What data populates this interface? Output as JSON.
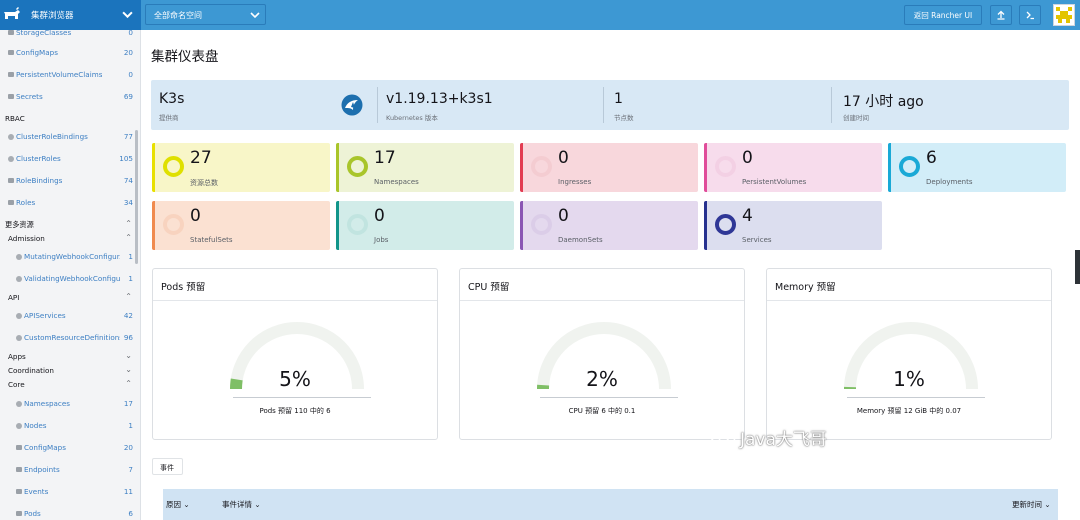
{
  "header": {
    "cluster_name": "集群浏览器",
    "namespace_select": "全部命名空间",
    "back_button": "返回 Rancher UI"
  },
  "sidebar": {
    "items": [
      {
        "type": "item",
        "icon": "folder-icon",
        "label": "StorageClasses",
        "count": "0"
      },
      {
        "type": "item",
        "icon": "folder-icon",
        "label": "ConfigMaps",
        "count": "20"
      },
      {
        "type": "item",
        "icon": "folder-icon",
        "label": "PersistentVolumeClaims",
        "count": "0"
      },
      {
        "type": "item",
        "icon": "folder-icon",
        "label": "Secrets",
        "count": "69"
      },
      {
        "type": "head",
        "label": "RBAC",
        "caret": ""
      },
      {
        "type": "item",
        "icon": "dot-icon",
        "label": "ClusterRoleBindings",
        "count": "77"
      },
      {
        "type": "item",
        "icon": "dot-icon",
        "label": "ClusterRoles",
        "count": "105"
      },
      {
        "type": "item",
        "icon": "folder-icon",
        "label": "RoleBindings",
        "count": "74"
      },
      {
        "type": "item",
        "icon": "folder-icon",
        "label": "Roles",
        "count": "34"
      },
      {
        "type": "head",
        "label": "更多资源",
        "caret": "⌃"
      },
      {
        "type": "head",
        "label": "Admission",
        "caret": "⌃"
      },
      {
        "type": "item",
        "icon": "dot-icon",
        "label": "MutatingWebhookConfigur...",
        "count": "1"
      },
      {
        "type": "item",
        "icon": "dot-icon",
        "label": "ValidatingWebhookConfigu...",
        "count": "1"
      },
      {
        "type": "head",
        "label": "API",
        "caret": "⌃"
      },
      {
        "type": "item",
        "icon": "dot-icon",
        "label": "APIServices",
        "count": "42"
      },
      {
        "type": "item",
        "icon": "dot-icon",
        "label": "CustomResourceDefinitions",
        "count": "96"
      },
      {
        "type": "head",
        "label": "Apps",
        "caret": "⌄"
      },
      {
        "type": "head",
        "label": "Coordination",
        "caret": "⌄"
      },
      {
        "type": "head",
        "label": "Core",
        "caret": "⌃"
      },
      {
        "type": "item",
        "icon": "dot-icon",
        "label": "Namespaces",
        "count": "17"
      },
      {
        "type": "item",
        "icon": "dot-icon",
        "label": "Nodes",
        "count": "1"
      },
      {
        "type": "item",
        "icon": "folder-icon",
        "label": "ConfigMaps",
        "count": "20"
      },
      {
        "type": "item",
        "icon": "folder-icon",
        "label": "Endpoints",
        "count": "7"
      },
      {
        "type": "item",
        "icon": "folder-icon",
        "label": "Events",
        "count": "11"
      },
      {
        "type": "item",
        "icon": "folder-icon",
        "label": "Pods",
        "count": "6"
      }
    ]
  },
  "main": {
    "title": "集群仪表盘",
    "info": [
      {
        "value": "K3s",
        "label": "提供商"
      },
      {
        "value": "v1.19.13+k3s1",
        "label": "Kubernetes 版本"
      },
      {
        "value": "1",
        "label": "节点数"
      },
      {
        "value": "17 小时 ago",
        "label": "创建时间"
      }
    ],
    "cards": [
      {
        "num": "27",
        "label": "资源总数",
        "color": "#e8e000",
        "bg": "#f8f6c8",
        "ring": "#dfe000",
        "fill": true
      },
      {
        "num": "17",
        "label": "Namespaces",
        "color": "#a9c52b",
        "bg": "#eef3d6",
        "ring": "#a9c52b",
        "fill": true
      },
      {
        "num": "0",
        "label": "Ingresses",
        "color": "#e23c52",
        "bg": "#f8d7dc",
        "ring": "#f1c2c9",
        "fill": false
      },
      {
        "num": "0",
        "label": "PersistentVolumes",
        "color": "#e04d9a",
        "bg": "#f7dcec",
        "ring": "#f0c6df",
        "fill": false
      },
      {
        "num": "6",
        "label": "Deployments",
        "color": "#1aa9d6",
        "bg": "#d2edf8",
        "ring": "#1aa9d6",
        "fill": true
      },
      {
        "num": "0",
        "label": "StatefulSets",
        "color": "#f08a4e",
        "bg": "#fbe1d2",
        "ring": "#f6c9ae",
        "fill": false
      },
      {
        "num": "0",
        "label": "Jobs",
        "color": "#11958a",
        "bg": "#d2ece9",
        "ring": "#b3ded9",
        "fill": false
      },
      {
        "num": "0",
        "label": "DaemonSets",
        "color": "#8a56b3",
        "bg": "#e4d9ee",
        "ring": "#d3c2e4",
        "fill": false
      },
      {
        "num": "4",
        "label": "Services",
        "color": "#27318f",
        "bg": "#dcdeef",
        "ring": "#2f3796",
        "fill": true
      }
    ],
    "gauges": [
      {
        "title": "Pods 预留",
        "percent": "5%",
        "value": 0.05,
        "subtitle": "Pods 预留 110 中的 6"
      },
      {
        "title": "CPU 预留",
        "percent": "2%",
        "value": 0.02,
        "subtitle": "CPU 预留 6 中的 0.1"
      },
      {
        "title": "Memory 预留",
        "percent": "1%",
        "value": 0.01,
        "subtitle": "Memory 预留 12 GiB 中的 0.07"
      }
    ],
    "events_tab": "事件",
    "table_headers": {
      "reason": "原因 ⌄",
      "details": "事件详情 ⌄",
      "time": "更新时间 ⌄"
    }
  },
  "watermark": "Java大飞哥",
  "colors": {
    "header": "#3d98d3",
    "header_dark": "#1b74bd",
    "link": "#3d7fc3",
    "gauge_fill": "#7fbf66",
    "gauge_track": "#f0f3ef"
  }
}
